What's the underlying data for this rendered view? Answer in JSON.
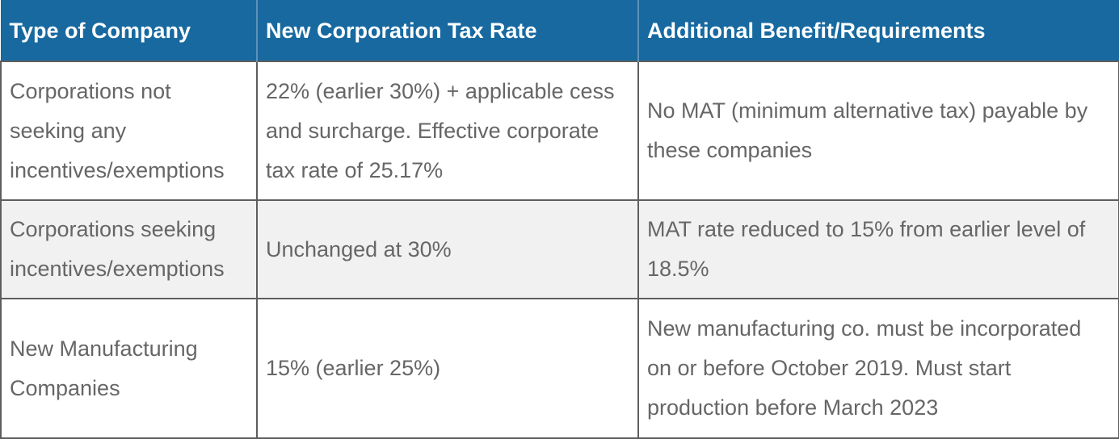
{
  "header": {
    "col1": "Type of Company",
    "col2": "New Corporation Tax Rate",
    "col3": "Additional Benefit/Requirements"
  },
  "rows": [
    {
      "type": "Corporations not seeking any incentives/exemptions",
      "rate": "22% (earlier 30%) + applicable cess and surcharge. Effective corporate tax rate of 25.17%",
      "benefit": "No MAT (minimum alternative tax) payable by these companies"
    },
    {
      "type": "Corporations seeking incentives/exemptions",
      "rate": "Unchanged at 30%",
      "benefit": "MAT rate reduced to 15% from earlier level of 18.5%"
    },
    {
      "type": "New Manufacturing Companies",
      "rate": "15% (earlier 25%)",
      "benefit": "New manufacturing co. must be incorporated on or before October 2019. Must start production before March 2023"
    }
  ],
  "colors": {
    "header_bg": "#1769a0",
    "header_text": "#ffffff",
    "cell_text": "#666666",
    "alt_row_bg": "#f1f1f1",
    "border": "#5e5e5e"
  }
}
